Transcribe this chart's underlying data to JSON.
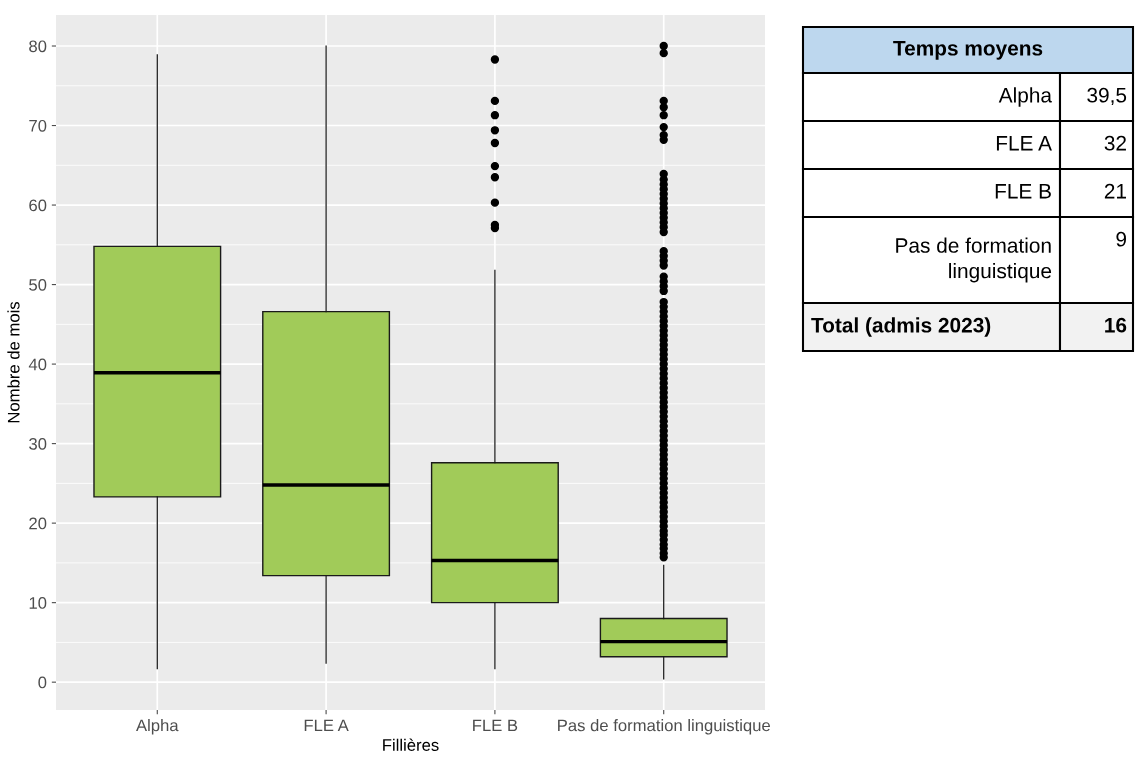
{
  "chart_data": [
    {
      "type": "box",
      "xlabel": "Fillières",
      "ylabel": "Nombre de mois",
      "categories": [
        "Alpha",
        "FLE A",
        "FLE B",
        "Pas de formation linguistique"
      ],
      "color": "#a1cb59",
      "ylim": [
        -3.5,
        83.9
      ],
      "yticks": [
        0,
        10,
        20,
        30,
        40,
        50,
        60,
        70,
        80
      ],
      "grid": true,
      "marker": "circle",
      "boxes": [
        {
          "low": 1.7,
          "q1": 23.3,
          "median": 38.9,
          "q3": 54.8,
          "high": 78.9
        },
        {
          "low": 2.4,
          "q1": 13.4,
          "median": 24.8,
          "q3": 46.6,
          "high": 80
        },
        {
          "low": 1.7,
          "q1": 10.0,
          "median": 15.3,
          "q3": 27.6,
          "high": 51.8,
          "outliers": [
            57.1,
            57.5,
            60.3,
            63.5,
            64.9,
            67.8,
            69.4,
            71.3,
            73.1,
            78.3
          ]
        },
        {
          "low": 0.4,
          "q1": 3.2,
          "median": 5.1,
          "q3": 8.0,
          "high": 14.7,
          "outliers": [
            15.7,
            16.2,
            16.8,
            17.3,
            17.9,
            18.5,
            19,
            19.6,
            20.2,
            20.8,
            21.4,
            22,
            22.6,
            23.2,
            23.8,
            24.4,
            25,
            25.6,
            26.2,
            26.8,
            27.4,
            28,
            28.6,
            29.2,
            29.8,
            30.4,
            31,
            31.6,
            32.2,
            32.8,
            33.4,
            34,
            34.6,
            35.2,
            35.8,
            36.4,
            37,
            37.6,
            38.2,
            38.8,
            39.4,
            40,
            40.6,
            41.2,
            41.8,
            42.4,
            43,
            43.6,
            44.2,
            44.8,
            45.4,
            46,
            46.6,
            47.2,
            47.8,
            49.2,
            49.8,
            50.4,
            51,
            52.4,
            53,
            53.6,
            54.2,
            56.6,
            57.2,
            57.8,
            58.4,
            59,
            59.6,
            60.2,
            60.8,
            61.4,
            62,
            62.6,
            63.2,
            63.9,
            68.2,
            68.8,
            69.8,
            71.3,
            72.3,
            73.1,
            79.1,
            80
          ]
        }
      ]
    },
    {
      "type": "other",
      "title": "Temps moyens",
      "categories": [
        "Alpha",
        "FLE A",
        "FLE B",
        "Pas de formation linguistique",
        "Total (admis 2023)"
      ],
      "value_labels": [
        "39,5",
        "32",
        "21",
        "9",
        "16"
      ],
      "colors": [
        "#ffffff",
        "#ffffff",
        "#ffffff",
        "#ffffff",
        "#f2f2f2"
      ]
    }
  ]
}
